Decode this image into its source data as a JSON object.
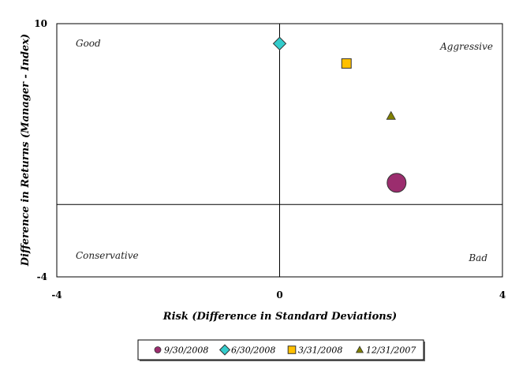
{
  "chart_data": {
    "type": "scatter",
    "title": "",
    "xlabel": "Risk (Difference in Standard Deviations)",
    "ylabel": "Difference in Returns (Manager - Index)",
    "xlim": [
      -4,
      4
    ],
    "ylim": [
      -4,
      10
    ],
    "x_ticks": [
      "-4",
      "0",
      "4"
    ],
    "y_ticks": [
      "10",
      "-4"
    ],
    "grid": false,
    "reference_lines": {
      "x": 0,
      "y": 0
    },
    "quadrant_labels": {
      "top_left": "Good",
      "top_right": "Aggressive",
      "bottom_left": "Conservative",
      "bottom_right": "Bad"
    },
    "legend_position": "bottom",
    "series": [
      {
        "name": "9/30/2008",
        "marker": "circle-large",
        "color": "#9B2D6E",
        "x": 2.1,
        "y": 1.2
      },
      {
        "name": "6/30/2008",
        "marker": "diamond",
        "color": "#33CCCC",
        "x": 0.0,
        "y": 8.9
      },
      {
        "name": "3/31/2008",
        "marker": "square",
        "color": "#FFC000",
        "x": 1.2,
        "y": 7.8
      },
      {
        "name": "12/31/2007",
        "marker": "triangle",
        "color": "#808000",
        "x": 2.0,
        "y": 4.9
      }
    ]
  }
}
